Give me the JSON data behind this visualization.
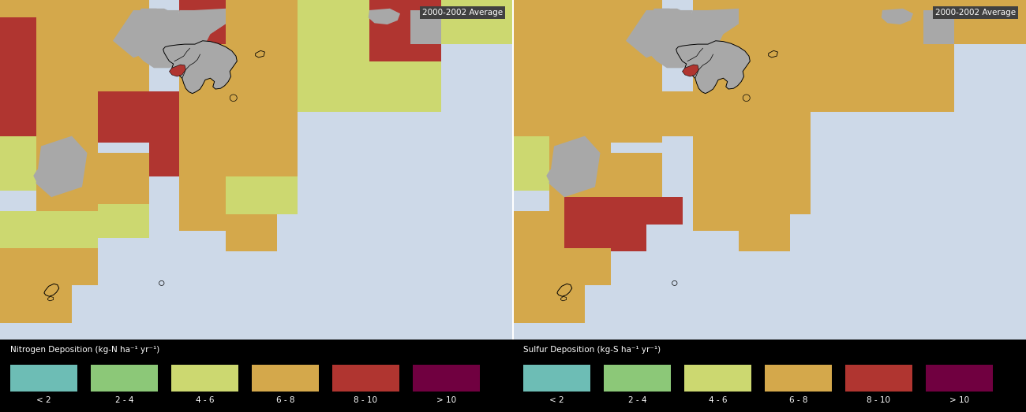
{
  "annotation_text": "2000-2002 Average",
  "legend_left_title": "Nitrogen Deposition (kg-N ha⁻¹ yr⁻¹)",
  "legend_right_title": "Sulfur Deposition (kg-S ha⁻¹ yr⁻¹)",
  "legend_labels": [
    "< 2",
    "2 - 4",
    "4 - 6",
    "6 - 8",
    "8 - 10",
    "> 10"
  ],
  "colors": [
    "#6dbdb5",
    "#8cc878",
    "#ccd870",
    "#d4a84b",
    "#b03530",
    "#700040"
  ],
  "map_bg": "#cdd9e8",
  "legend_bg": "#000000",
  "legend_text_color": "#ffffff",
  "gray_color": "#a8a8a8",
  "annotation_color": "#ffffff",
  "annotation_bg": "#404040",
  "left_rects": [
    [
      0.0,
      0.95,
      0.18,
      0.05,
      3
    ],
    [
      0.0,
      0.78,
      0.07,
      0.17,
      4
    ],
    [
      0.07,
      0.87,
      0.12,
      0.13,
      3
    ],
    [
      0.19,
      0.87,
      0.1,
      0.13,
      3
    ],
    [
      0.0,
      0.6,
      0.07,
      0.18,
      4
    ],
    [
      0.07,
      0.72,
      0.12,
      0.15,
      3
    ],
    [
      0.19,
      0.73,
      0.1,
      0.14,
      3
    ],
    [
      0.35,
      0.87,
      0.09,
      0.13,
      4
    ],
    [
      0.35,
      0.73,
      0.09,
      0.14,
      3
    ],
    [
      0.44,
      0.78,
      0.14,
      0.22,
      3
    ],
    [
      0.58,
      0.82,
      0.14,
      0.18,
      2
    ],
    [
      0.72,
      0.82,
      0.14,
      0.18,
      4
    ],
    [
      0.86,
      0.87,
      0.14,
      0.13,
      2
    ],
    [
      0.72,
      0.67,
      0.14,
      0.15,
      2
    ],
    [
      0.58,
      0.67,
      0.14,
      0.15,
      2
    ],
    [
      0.0,
      0.44,
      0.07,
      0.16,
      2
    ],
    [
      0.07,
      0.55,
      0.12,
      0.17,
      3
    ],
    [
      0.19,
      0.58,
      0.1,
      0.15,
      4
    ],
    [
      0.29,
      0.6,
      0.06,
      0.13,
      4
    ],
    [
      0.29,
      0.48,
      0.06,
      0.12,
      4
    ],
    [
      0.35,
      0.58,
      0.09,
      0.15,
      3
    ],
    [
      0.35,
      0.46,
      0.09,
      0.12,
      3
    ],
    [
      0.44,
      0.6,
      0.14,
      0.18,
      3
    ],
    [
      0.44,
      0.48,
      0.14,
      0.12,
      3
    ],
    [
      0.07,
      0.38,
      0.12,
      0.17,
      3
    ],
    [
      0.19,
      0.4,
      0.1,
      0.15,
      3
    ],
    [
      0.07,
      0.27,
      0.12,
      0.11,
      2
    ],
    [
      0.19,
      0.3,
      0.1,
      0.1,
      2
    ],
    [
      0.35,
      0.32,
      0.09,
      0.14,
      3
    ],
    [
      0.44,
      0.37,
      0.14,
      0.11,
      2
    ],
    [
      0.44,
      0.26,
      0.1,
      0.11,
      3
    ],
    [
      0.0,
      0.27,
      0.07,
      0.11,
      2
    ],
    [
      0.0,
      0.16,
      0.07,
      0.11,
      3
    ],
    [
      0.07,
      0.16,
      0.12,
      0.11,
      3
    ],
    [
      0.0,
      0.05,
      0.07,
      0.11,
      3
    ],
    [
      0.07,
      0.05,
      0.07,
      0.11,
      3
    ]
  ],
  "right_rects": [
    [
      0.0,
      0.95,
      0.18,
      0.05,
      3
    ],
    [
      0.0,
      0.78,
      0.07,
      0.17,
      3
    ],
    [
      0.07,
      0.87,
      0.12,
      0.13,
      3
    ],
    [
      0.19,
      0.87,
      0.1,
      0.13,
      3
    ],
    [
      0.0,
      0.6,
      0.07,
      0.18,
      3
    ],
    [
      0.07,
      0.72,
      0.12,
      0.15,
      3
    ],
    [
      0.19,
      0.73,
      0.1,
      0.14,
      3
    ],
    [
      0.35,
      0.87,
      0.09,
      0.13,
      3
    ],
    [
      0.35,
      0.73,
      0.09,
      0.14,
      3
    ],
    [
      0.44,
      0.78,
      0.14,
      0.22,
      3
    ],
    [
      0.58,
      0.82,
      0.14,
      0.18,
      3
    ],
    [
      0.72,
      0.82,
      0.14,
      0.18,
      3
    ],
    [
      0.86,
      0.87,
      0.14,
      0.13,
      3
    ],
    [
      0.72,
      0.67,
      0.14,
      0.15,
      3
    ],
    [
      0.58,
      0.67,
      0.14,
      0.15,
      3
    ],
    [
      0.0,
      0.44,
      0.07,
      0.16,
      2
    ],
    [
      0.07,
      0.55,
      0.12,
      0.17,
      3
    ],
    [
      0.19,
      0.58,
      0.1,
      0.15,
      3
    ],
    [
      0.29,
      0.6,
      0.06,
      0.13,
      3
    ],
    [
      0.35,
      0.58,
      0.09,
      0.15,
      3
    ],
    [
      0.35,
      0.46,
      0.09,
      0.12,
      3
    ],
    [
      0.44,
      0.6,
      0.14,
      0.18,
      3
    ],
    [
      0.44,
      0.48,
      0.14,
      0.12,
      3
    ],
    [
      0.07,
      0.38,
      0.12,
      0.17,
      3
    ],
    [
      0.19,
      0.4,
      0.1,
      0.15,
      3
    ],
    [
      0.1,
      0.26,
      0.16,
      0.16,
      4
    ],
    [
      0.26,
      0.34,
      0.07,
      0.08,
      4
    ],
    [
      0.07,
      0.27,
      0.03,
      0.11,
      3
    ],
    [
      0.35,
      0.32,
      0.09,
      0.14,
      3
    ],
    [
      0.44,
      0.37,
      0.14,
      0.11,
      3
    ],
    [
      0.44,
      0.26,
      0.1,
      0.11,
      3
    ],
    [
      0.0,
      0.27,
      0.07,
      0.11,
      3
    ],
    [
      0.0,
      0.16,
      0.07,
      0.11,
      3
    ],
    [
      0.07,
      0.16,
      0.12,
      0.11,
      3
    ],
    [
      0.0,
      0.05,
      0.07,
      0.11,
      3
    ],
    [
      0.07,
      0.05,
      0.07,
      0.11,
      3
    ]
  ],
  "left_gray_polys": [
    [
      [
        0.26,
        0.97
      ],
      [
        0.35,
        0.97
      ],
      [
        0.33,
        0.87
      ],
      [
        0.26,
        0.83
      ],
      [
        0.22,
        0.88
      ]
    ],
    [
      [
        0.35,
        0.97
      ],
      [
        0.44,
        0.97
      ],
      [
        0.44,
        0.93
      ],
      [
        0.38,
        0.87
      ],
      [
        0.33,
        0.87
      ]
    ],
    [
      [
        0.08,
        0.57
      ],
      [
        0.14,
        0.6
      ],
      [
        0.17,
        0.55
      ],
      [
        0.16,
        0.45
      ],
      [
        0.1,
        0.42
      ],
      [
        0.07,
        0.46
      ]
    ],
    [
      [
        0.8,
        0.97
      ],
      [
        0.86,
        0.97
      ],
      [
        0.86,
        0.87
      ],
      [
        0.8,
        0.87
      ]
    ]
  ],
  "right_gray_polys": [
    [
      [
        0.26,
        0.97
      ],
      [
        0.35,
        0.97
      ],
      [
        0.33,
        0.87
      ],
      [
        0.26,
        0.83
      ],
      [
        0.22,
        0.88
      ]
    ],
    [
      [
        0.35,
        0.97
      ],
      [
        0.44,
        0.97
      ],
      [
        0.44,
        0.93
      ],
      [
        0.38,
        0.87
      ],
      [
        0.33,
        0.87
      ]
    ],
    [
      [
        0.08,
        0.57
      ],
      [
        0.14,
        0.6
      ],
      [
        0.17,
        0.55
      ],
      [
        0.16,
        0.45
      ],
      [
        0.1,
        0.42
      ],
      [
        0.07,
        0.46
      ]
    ],
    [
      [
        0.8,
        0.97
      ],
      [
        0.86,
        0.97
      ],
      [
        0.86,
        0.87
      ],
      [
        0.8,
        0.87
      ]
    ]
  ]
}
